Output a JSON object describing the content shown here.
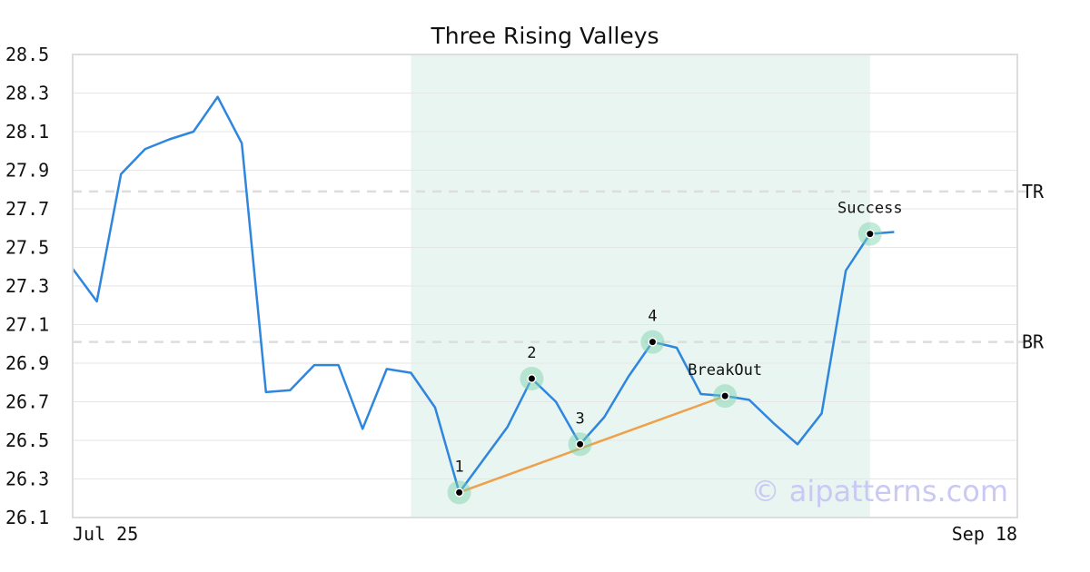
{
  "chart_data": {
    "type": "line",
    "title": "Three Rising Valleys",
    "xlabel": "",
    "ylabel": "",
    "ylim": [
      26.1,
      28.5
    ],
    "yticks": [
      26.1,
      26.3,
      26.5,
      26.7,
      26.9,
      27.1,
      27.3,
      27.5,
      27.7,
      27.9,
      28.1,
      28.3,
      28.5
    ],
    "xtick_labels": [
      "Jul 25",
      "Sep 18"
    ],
    "grid": true,
    "series": [
      {
        "color": "#2e86de",
        "values": [
          27.39,
          27.22,
          27.88,
          28.01,
          28.06,
          28.1,
          28.28,
          28.04,
          26.75,
          26.76,
          26.89,
          26.89,
          26.56,
          26.87,
          26.85,
          26.67,
          26.23,
          26.4,
          26.57,
          26.82,
          26.7,
          26.48,
          26.62,
          26.83,
          27.01,
          26.98,
          26.74,
          26.73,
          26.71,
          26.59,
          26.48,
          26.64,
          27.38,
          27.57,
          27.58
        ]
      }
    ],
    "levels": [
      {
        "label": "TR",
        "value": 27.79
      },
      {
        "label": "BR",
        "value": 27.01
      }
    ],
    "highlight": {
      "from_index": 14,
      "to_index": 33,
      "color": "#e8f5f0"
    },
    "trendline": {
      "from_index": 16,
      "to_index": 27,
      "from_value": 26.23,
      "to_value": 26.73,
      "color": "#f0a04b"
    },
    "annotations": [
      {
        "label": "1",
        "index": 16,
        "value": 26.23
      },
      {
        "label": "2",
        "index": 19,
        "value": 26.82
      },
      {
        "label": "3",
        "index": 21,
        "value": 26.48
      },
      {
        "label": "4",
        "index": 24,
        "value": 27.01
      },
      {
        "label": "BreakOut",
        "index": 27,
        "value": 26.73
      },
      {
        "label": "Success",
        "index": 33,
        "value": 27.57
      }
    ],
    "watermark": "© aipatterns.com"
  }
}
